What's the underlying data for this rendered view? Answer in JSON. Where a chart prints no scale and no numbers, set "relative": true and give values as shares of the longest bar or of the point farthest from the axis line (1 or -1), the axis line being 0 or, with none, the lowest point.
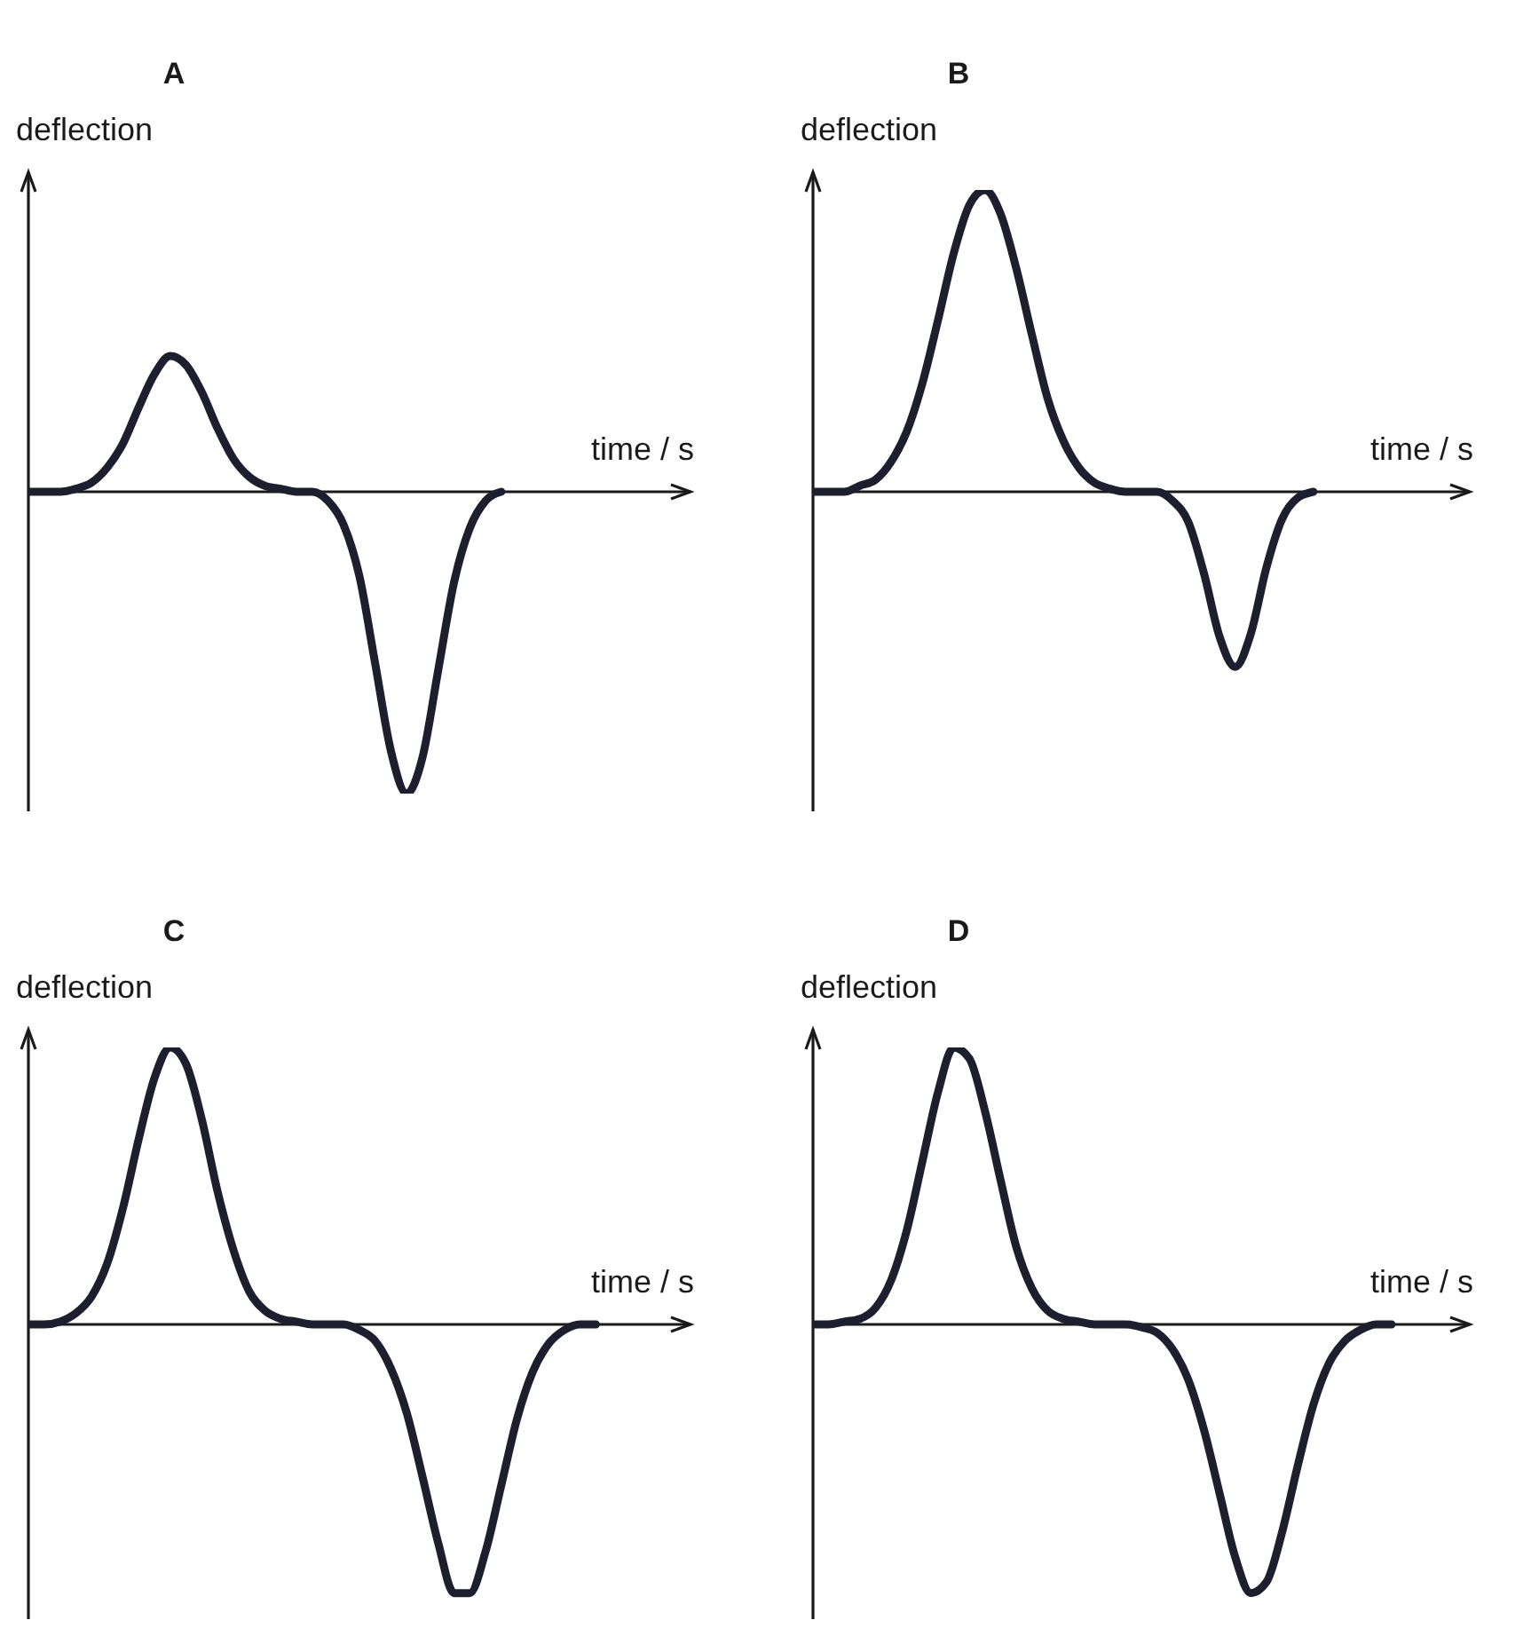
{
  "chart_data": [
    {
      "type": "line",
      "title": "A",
      "xlabel": "time / s",
      "ylabel": "deflection",
      "relative": true,
      "color": "#1d1f2e",
      "categories": [
        null,
        null,
        null,
        null,
        null,
        null,
        null,
        null,
        null,
        null,
        null,
        null,
        null,
        null,
        null,
        null,
        null,
        null,
        null,
        null,
        null,
        null,
        null,
        null,
        null,
        null,
        null,
        null,
        null,
        null,
        null,
        null,
        null,
        null,
        null,
        null,
        null,
        null,
        null,
        null,
        null,
        null,
        null
      ],
      "values": [
        0,
        0,
        0,
        0.01,
        0.03,
        0.08,
        0.16,
        0.28,
        0.39,
        0.45,
        0.42,
        0.33,
        0.21,
        0.11,
        0.05,
        0.02,
        0.01,
        0,
        0,
        -0.03,
        -0.11,
        -0.28,
        -0.57,
        -0.86,
        -1,
        -0.88,
        -0.59,
        -0.3,
        -0.12,
        -0.03,
        0,
        null,
        null,
        null,
        null,
        null,
        null,
        null,
        null,
        null,
        null,
        null,
        null
      ]
    },
    {
      "type": "line",
      "title": "B",
      "xlabel": "time / s",
      "ylabel": "deflection",
      "relative": true,
      "color": "#1d1f2e",
      "categories": [
        null,
        null,
        null,
        null,
        null,
        null,
        null,
        null,
        null,
        null,
        null,
        null,
        null,
        null,
        null,
        null,
        null,
        null,
        null,
        null,
        null,
        null,
        null,
        null,
        null,
        null,
        null,
        null,
        null,
        null,
        null,
        null,
        null,
        null,
        null,
        null,
        null,
        null,
        null,
        null,
        null,
        null,
        null
      ],
      "values": [
        0,
        0,
        0,
        0.02,
        0.04,
        0.1,
        0.2,
        0.36,
        0.57,
        0.79,
        0.95,
        1,
        0.92,
        0.74,
        0.52,
        0.31,
        0.17,
        0.08,
        0.03,
        0.01,
        0,
        0,
        0,
        -0.03,
        -0.1,
        -0.27,
        -0.48,
        -0.58,
        -0.47,
        -0.25,
        -0.09,
        -0.02,
        0,
        null,
        null,
        null,
        null,
        null,
        null,
        null,
        null,
        null,
        null
      ]
    },
    {
      "type": "line",
      "title": "C",
      "xlabel": "time / s",
      "ylabel": "deflection",
      "relative": true,
      "color": "#1d1f2e",
      "categories": [
        null,
        null,
        null,
        null,
        null,
        null,
        null,
        null,
        null,
        null,
        null,
        null,
        null,
        null,
        null,
        null,
        null,
        null,
        null,
        null,
        null,
        null,
        null,
        null,
        null,
        null,
        null,
        null,
        null,
        null,
        null,
        null,
        null,
        null,
        null,
        null,
        null,
        null,
        null,
        null,
        null,
        null,
        null
      ],
      "values": [
        0,
        0,
        0.01,
        0.04,
        0.1,
        0.22,
        0.42,
        0.67,
        0.89,
        1,
        0.94,
        0.74,
        0.48,
        0.27,
        0.12,
        0.05,
        0.02,
        0.01,
        0,
        0,
        0,
        -0.02,
        -0.06,
        -0.16,
        -0.32,
        -0.55,
        -0.79,
        -0.97,
        -0.97,
        -0.82,
        -0.58,
        -0.34,
        -0.17,
        -0.07,
        -0.02,
        0,
        0,
        null,
        null,
        null,
        null,
        null,
        null
      ]
    },
    {
      "type": "line",
      "title": "D",
      "xlabel": "time / s",
      "ylabel": "deflection",
      "relative": true,
      "color": "#1d1f2e",
      "categories": [
        null,
        null,
        null,
        null,
        null,
        null,
        null,
        null,
        null,
        null,
        null,
        null,
        null,
        null,
        null,
        null,
        null,
        null,
        null,
        null,
        null,
        null,
        null,
        null,
        null,
        null,
        null,
        null,
        null,
        null,
        null,
        null,
        null,
        null,
        null,
        null,
        null,
        null,
        null,
        null,
        null,
        null,
        null
      ],
      "values": [
        0,
        0,
        0.01,
        0.02,
        0.06,
        0.16,
        0.34,
        0.59,
        0.84,
        1,
        0.96,
        0.77,
        0.52,
        0.28,
        0.13,
        0.05,
        0.02,
        0.01,
        0,
        0,
        0,
        -0.01,
        -0.03,
        -0.09,
        -0.2,
        -0.38,
        -0.61,
        -0.84,
        -0.97,
        -0.93,
        -0.75,
        -0.51,
        -0.29,
        -0.14,
        -0.06,
        -0.02,
        0,
        0,
        null,
        null,
        null,
        null,
        null
      ]
    }
  ]
}
